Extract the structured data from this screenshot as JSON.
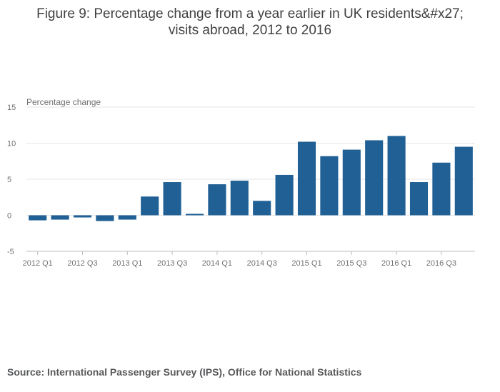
{
  "chart_data": {
    "type": "bar",
    "title_line1": "Figure 9: Percentage change from a year earlier in UK residents&#x27;",
    "title_line2": "visits abroad, 2012 to 2016",
    "ylabel": "Percentage change",
    "xlabel": "",
    "ylim": [
      -5,
      15
    ],
    "yticks": [
      "15",
      "10",
      "5",
      "0",
      "-5"
    ],
    "ytick_values": [
      15,
      10,
      5,
      0,
      -5
    ],
    "categories": [
      "2012 Q1",
      "2012 Q2",
      "2012 Q3",
      "2012 Q4",
      "2013 Q1",
      "2013 Q2",
      "2013 Q3",
      "2013 Q4",
      "2014 Q1",
      "2014 Q2",
      "2014 Q3",
      "2014 Q4",
      "2015 Q1",
      "2015 Q2",
      "2015 Q3",
      "2015 Q4",
      "2016 Q1",
      "2016 Q2",
      "2016 Q3",
      "2016 Q4"
    ],
    "values": [
      -0.7,
      -0.6,
      -0.3,
      -0.8,
      -0.6,
      2.6,
      4.6,
      0.2,
      4.3,
      4.8,
      2.0,
      5.6,
      10.2,
      8.2,
      9.1,
      10.4,
      11.0,
      4.6,
      7.3,
      9.5
    ],
    "xtick_labels": [
      "2012 Q1",
      "2012 Q3",
      "2013 Q1",
      "2013 Q3",
      "2014 Q1",
      "2014 Q3",
      "2015 Q1",
      "2015 Q3",
      "2016 Q1",
      "2016 Q3"
    ],
    "bar_color": "#206095",
    "grid": true,
    "legend": "none"
  },
  "source": "Source: International Passenger Survey (IPS), Office for National Statistics"
}
